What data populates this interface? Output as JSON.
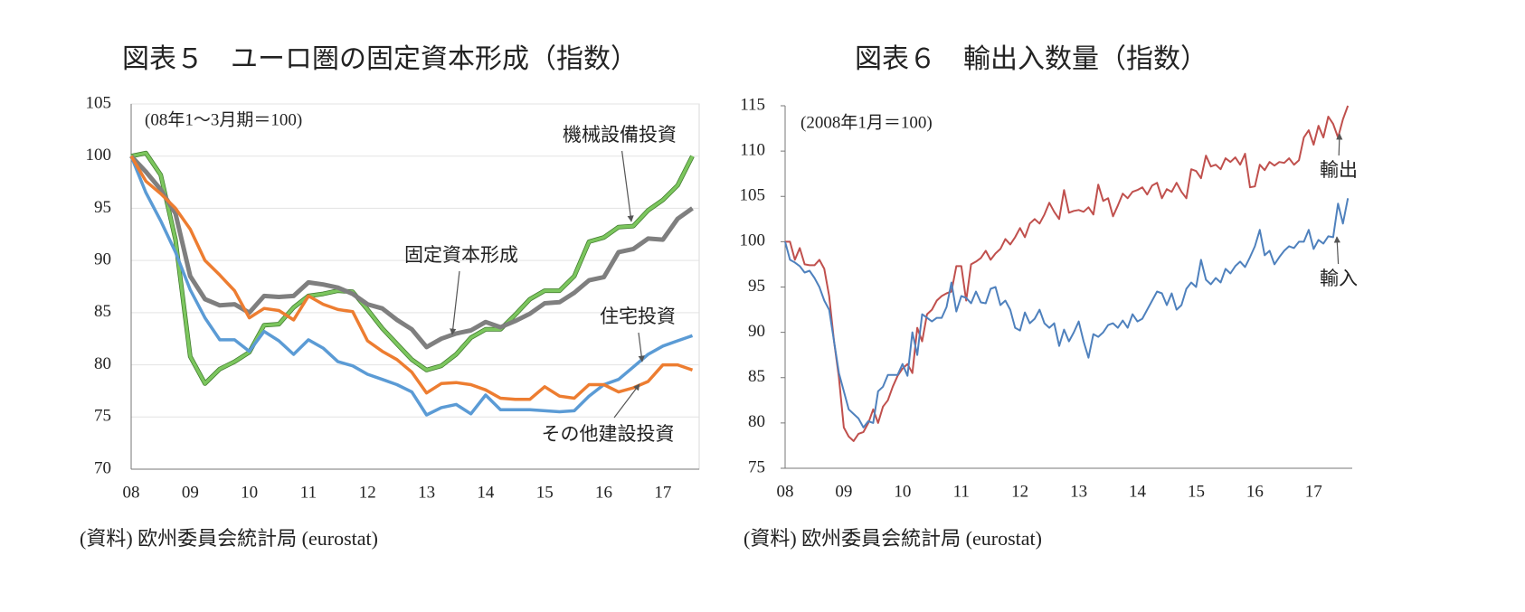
{
  "chart_data": [
    {
      "type": "line",
      "title": "図表５　ユーロ圏の固定資本形成（指数）",
      "note": "(08年1～3月期＝100)",
      "source": "(資料) 欧州委員会統計局 (eurostat)",
      "categories": [
        "08",
        null,
        null,
        null,
        "09",
        null,
        null,
        null,
        "10",
        null,
        null,
        null,
        "11",
        null,
        null,
        null,
        "12",
        null,
        null,
        null,
        "13",
        null,
        null,
        null,
        "14",
        null,
        null,
        null,
        "15",
        null,
        null,
        null,
        "16",
        null,
        null,
        null,
        "17",
        null,
        null
      ],
      "ylim": [
        70,
        105
      ],
      "yticks": [
        70,
        75,
        80,
        85,
        90,
        95,
        100,
        105
      ],
      "grid": true,
      "series": [
        {
          "name": "機械設備投資",
          "color": "#7cc65e",
          "values": [
            100,
            100.3,
            98.2,
            92,
            80.8,
            78.2,
            79.6,
            80.3,
            81.2,
            83.8,
            83.9,
            85.5,
            86.6,
            86.8,
            87.1,
            87,
            85.3,
            83.5,
            82,
            80.5,
            79.5,
            79.9,
            81,
            82.6,
            83.4,
            83.4,
            84.8,
            86.3,
            87.1,
            87.1,
            88.5,
            91.8,
            92.2,
            93.2,
            93.3,
            94.8,
            95.8,
            97.2,
            100
          ]
        },
        {
          "name": "固定資本形成",
          "color": "#7f7f7f",
          "values": [
            100,
            98.5,
            96.8,
            94.5,
            88.5,
            86.3,
            85.7,
            85.8,
            85,
            86.6,
            86.5,
            86.6,
            87.9,
            87.7,
            87.4,
            86.8,
            85.8,
            85.4,
            84.3,
            83.4,
            81.7,
            82.5,
            83,
            83.3,
            84.1,
            83.6,
            84.2,
            84.9,
            85.9,
            86,
            86.9,
            88.1,
            88.4,
            90.8,
            91.1,
            92.1,
            92,
            94,
            95
          ]
        },
        {
          "name": "住宅投資",
          "color": "#5b9bd5",
          "values": [
            100,
            96.5,
            93.8,
            90.8,
            87.2,
            84.5,
            82.4,
            82.4,
            81.3,
            83.2,
            82.3,
            81,
            82.4,
            81.6,
            80.3,
            79.9,
            79.1,
            78.6,
            78.1,
            77.4,
            75.2,
            75.9,
            76.2,
            75.3,
            77.1,
            75.7,
            75.7,
            75.7,
            75.6,
            75.5,
            75.6,
            77,
            78.1,
            78.6,
            79.8,
            81,
            81.8,
            82.3,
            82.8
          ]
        },
        {
          "name": "その他建設投資",
          "color": "#ed7d31",
          "values": [
            100,
            97.6,
            96.4,
            95,
            93,
            90,
            88.6,
            87.1,
            84.5,
            85.4,
            85.2,
            84.3,
            86.6,
            85.8,
            85.3,
            85.1,
            82.3,
            81.3,
            80.5,
            79.3,
            77.3,
            78.2,
            78.3,
            78.1,
            77.6,
            76.8,
            76.7,
            76.7,
            77.9,
            77,
            76.8,
            78.1,
            78.1,
            77.4,
            77.8,
            78.4,
            80,
            80,
            79.5
          ]
        }
      ]
    },
    {
      "type": "line",
      "title": "図表６　輸出入数量（指数）",
      "note": "(2008年1月＝100)",
      "source": "(資料) 欧州委員会統計局 (eurostat)",
      "categories": [
        "08",
        null,
        null,
        null,
        null,
        null,
        null,
        null,
        null,
        null,
        null,
        null,
        "09",
        null,
        null,
        null,
        null,
        null,
        null,
        null,
        null,
        null,
        null,
        null,
        "10",
        null,
        null,
        null,
        null,
        null,
        null,
        null,
        null,
        null,
        null,
        null,
        "11",
        null,
        null,
        null,
        null,
        null,
        null,
        null,
        null,
        null,
        null,
        null,
        "12",
        null,
        null,
        null,
        null,
        null,
        null,
        null,
        null,
        null,
        null,
        null,
        "13",
        null,
        null,
        null,
        null,
        null,
        null,
        null,
        null,
        null,
        null,
        null,
        "14",
        null,
        null,
        null,
        null,
        null,
        null,
        null,
        null,
        null,
        null,
        null,
        "15",
        null,
        null,
        null,
        null,
        null,
        null,
        null,
        null,
        null,
        null,
        null,
        "16",
        null,
        null,
        null,
        null,
        null,
        null,
        null,
        null,
        null,
        null,
        null,
        "17",
        null,
        null,
        null,
        null,
        null,
        null,
        null
      ],
      "ylim": [
        75,
        115
      ],
      "yticks": [
        75,
        80,
        85,
        90,
        95,
        100,
        105,
        110,
        115
      ],
      "grid": false,
      "series": [
        {
          "name": "輸出",
          "color": "#c0504d",
          "values": [
            100,
            100,
            98,
            99.3,
            97.5,
            97.4,
            97.4,
            98,
            97,
            94,
            89,
            85,
            79.5,
            78.5,
            78,
            78.8,
            79,
            80,
            81.5,
            80,
            81.8,
            82.5,
            84,
            85.2,
            86,
            86.5,
            85.5,
            90.5,
            89,
            92,
            92.5,
            93.5,
            94,
            94.3,
            94.5,
            97.3,
            97.3,
            93.5,
            97.5,
            97.8,
            98.2,
            99,
            98,
            98.7,
            99.2,
            100.3,
            99.7,
            100.5,
            101.5,
            100.5,
            102,
            102.5,
            102,
            103,
            104.3,
            103.3,
            102.5,
            105.7,
            103.2,
            103.4,
            103.5,
            103.3,
            103.8,
            103,
            106.3,
            104.5,
            104.8,
            102.8,
            104,
            105.3,
            104.8,
            105.5,
            105.7,
            106,
            105.2,
            106.2,
            106.5,
            104.8,
            105.8,
            105.5,
            106.5,
            105.5,
            104.8,
            108,
            107.8,
            107,
            109.5,
            108.3,
            108.5,
            108,
            109.2,
            108.8,
            109.3,
            108.5,
            109.7,
            106,
            106.1,
            108.5,
            107.9,
            108.8,
            108.4,
            108.8,
            108.7,
            109.2,
            108.5,
            109,
            111.5,
            112.3,
            110.7,
            112.8,
            111.5,
            113.8,
            113,
            111.5,
            113.5,
            115
          ]
        },
        {
          "name": "輸入",
          "color": "#4f81bd",
          "values": [
            100,
            98,
            97.7,
            97.3,
            96.6,
            96.8,
            96,
            95,
            93.5,
            92.5,
            89,
            85.5,
            83.5,
            81.5,
            81,
            80.5,
            79.5,
            80.2,
            80,
            83.5,
            84,
            85.3,
            85.3,
            85.3,
            86.5,
            85.2,
            90,
            87.5,
            92,
            91.6,
            91.2,
            91.6,
            91.6,
            92.8,
            95.5,
            92.3,
            94,
            93.8,
            93.2,
            94.5,
            93.3,
            93.2,
            94.8,
            95,
            93,
            93.5,
            92.5,
            90.5,
            90.2,
            92.2,
            91,
            91.5,
            92.5,
            91,
            90.5,
            91,
            88.5,
            90.3,
            89,
            90,
            91.2,
            89,
            87.2,
            89.8,
            89.5,
            90,
            90.8,
            91,
            90.5,
            91.3,
            90.5,
            92,
            91.2,
            91.5,
            92.5,
            93.5,
            94.5,
            94.3,
            93,
            94.3,
            92.5,
            93,
            94.8,
            95.5,
            95,
            98,
            95.8,
            95.3,
            96,
            95.5,
            97,
            96.5,
            97.3,
            97.8,
            97.2,
            98.3,
            99.5,
            101.3,
            98.5,
            99,
            97.5,
            98.3,
            99,
            99.5,
            99.3,
            100,
            100,
            101.3,
            99.2,
            100.2,
            99.8,
            100.6,
            100.5,
            104.2,
            102,
            104.8
          ]
        }
      ]
    }
  ]
}
